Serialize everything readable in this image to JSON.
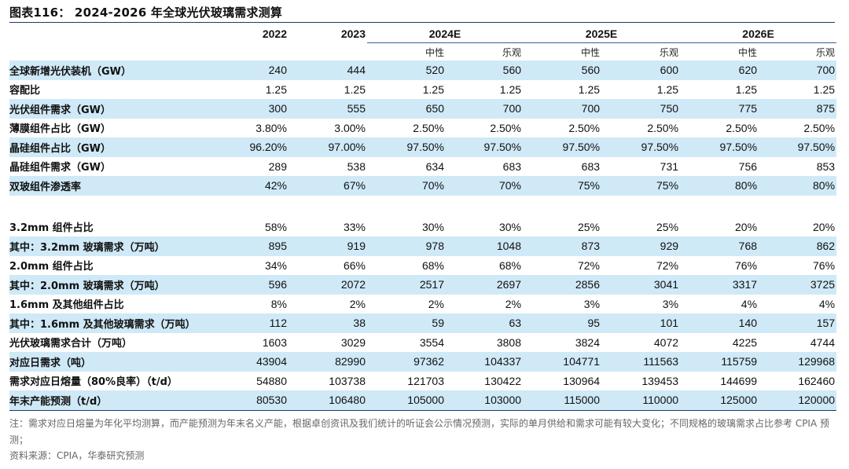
{
  "title": "图表116：  2024-2026 年全球光伏玻璃需求测算",
  "header": {
    "years": [
      "2022",
      "2023"
    ],
    "groups": [
      "2024E",
      "2025E",
      "2026E"
    ],
    "scenarios": [
      "中性",
      "乐观",
      "中性",
      "乐观",
      "中性",
      "乐观"
    ]
  },
  "rows": [
    {
      "label": "全球新增光伏装机（GW）",
      "values": [
        "240",
        "444",
        "520",
        "560",
        "560",
        "600",
        "620",
        "700"
      ]
    },
    {
      "label": "容配比",
      "values": [
        "1.25",
        "1.25",
        "1.25",
        "1.25",
        "1.25",
        "1.25",
        "1.25",
        "1.25"
      ]
    },
    {
      "label": "光伏组件需求（GW）",
      "values": [
        "300",
        "555",
        "650",
        "700",
        "700",
        "750",
        "775",
        "875"
      ]
    },
    {
      "label": "薄膜组件占比（GW）",
      "values": [
        "3.80%",
        "3.00%",
        "2.50%",
        "2.50%",
        "2.50%",
        "2.50%",
        "2.50%",
        "2.50%"
      ]
    },
    {
      "label": "晶硅组件占比（GW）",
      "values": [
        "96.20%",
        "97.00%",
        "97.50%",
        "97.50%",
        "97.50%",
        "97.50%",
        "97.50%",
        "97.50%"
      ]
    },
    {
      "label": "晶硅组件需求（GW）",
      "values": [
        "289",
        "538",
        "634",
        "683",
        "683",
        "731",
        "756",
        "853"
      ]
    },
    {
      "label": "双玻组件渗透率",
      "values": [
        "42%",
        "67%",
        "70%",
        "70%",
        "75%",
        "75%",
        "80%",
        "80%"
      ]
    },
    {
      "label": "",
      "values": [
        "",
        "",
        "",
        "",
        "",
        "",
        "",
        ""
      ]
    },
    {
      "label": "3.2mm 组件占比",
      "values": [
        "58%",
        "33%",
        "30%",
        "30%",
        "25%",
        "25%",
        "20%",
        "20%"
      ]
    },
    {
      "label": "其中：3.2mm 玻璃需求（万吨）",
      "values": [
        "895",
        "919",
        "978",
        "1048",
        "873",
        "929",
        "768",
        "862"
      ]
    },
    {
      "label": "2.0mm 组件占比",
      "values": [
        "34%",
        "66%",
        "68%",
        "68%",
        "72%",
        "72%",
        "76%",
        "76%"
      ]
    },
    {
      "label": "其中：2.0mm 玻璃需求（万吨）",
      "values": [
        "596",
        "2072",
        "2517",
        "2697",
        "2856",
        "3041",
        "3317",
        "3725"
      ]
    },
    {
      "label": "1.6mm 及其他组件占比",
      "values": [
        "8%",
        "2%",
        "2%",
        "2%",
        "3%",
        "3%",
        "4%",
        "4%"
      ]
    },
    {
      "label": "其中：1.6mm 及其他玻璃需求（万吨）",
      "values": [
        "112",
        "38",
        "59",
        "63",
        "95",
        "101",
        "140",
        "157"
      ]
    },
    {
      "label": "光伏玻璃需求合计（万吨）",
      "values": [
        "1603",
        "3029",
        "3554",
        "3808",
        "3824",
        "4072",
        "4225",
        "4744"
      ]
    },
    {
      "label": "对应日需求（吨）",
      "values": [
        "43904",
        "82990",
        "97362",
        "104337",
        "104771",
        "111563",
        "115759",
        "129968"
      ]
    },
    {
      "label": "需求对应日熔量（80%良率）（t/d）",
      "values": [
        "54880",
        "103738",
        "121703",
        "130422",
        "130964",
        "139453",
        "144699",
        "162460"
      ]
    },
    {
      "label": "年末产能预测（t/d）",
      "values": [
        "80530",
        "106480",
        "105000",
        "103000",
        "115000",
        "110000",
        "125000",
        "120000"
      ]
    }
  ],
  "notes": {
    "note": "注：需求对应日熔量为年化平均测算，而产能预测为年末名义产能，根据卓创资讯及我们统计的听证会公示情况预测，实际的单月供给和需求可能有较大变化；不同规格的玻璃需求占比参考 CPIA 预测；",
    "source": "资料来源：CPIA，华泰研究预测"
  },
  "colors": {
    "shade": "#cfe9f7",
    "rule": "#1a3a6e"
  }
}
